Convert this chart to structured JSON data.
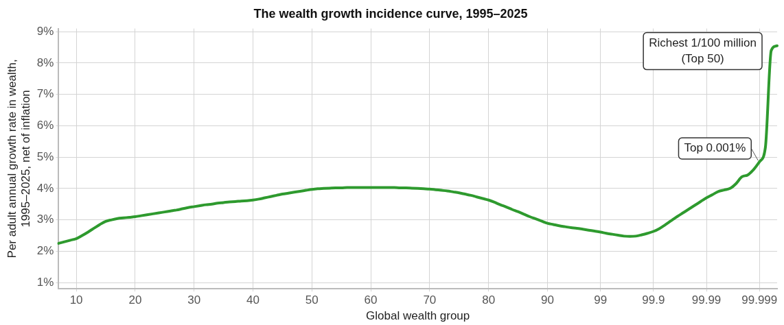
{
  "chart_data": {
    "type": "line",
    "title": "The wealth growth incidence curve, 1995–2025",
    "xlabel": "Global wealth group",
    "ylabel": "Per adult annual growth rate in wealth,\n1995–2025, net of inflation",
    "categories": [
      null,
      null,
      null,
      "10",
      null,
      null,
      null,
      null,
      null,
      null,
      null,
      null,
      null,
      "20",
      null,
      null,
      null,
      null,
      null,
      null,
      null,
      null,
      null,
      "30",
      null,
      null,
      null,
      null,
      null,
      null,
      null,
      null,
      null,
      "40",
      null,
      null,
      null,
      null,
      null,
      null,
      null,
      null,
      null,
      "50",
      null,
      null,
      null,
      null,
      null,
      null,
      null,
      null,
      null,
      "60",
      null,
      null,
      null,
      null,
      null,
      null,
      null,
      null,
      null,
      "70",
      null,
      null,
      null,
      null,
      null,
      null,
      null,
      null,
      null,
      "80",
      null,
      null,
      null,
      null,
      null,
      null,
      null,
      null,
      null,
      "90",
      null,
      null,
      null,
      null,
      null,
      null,
      null,
      null,
      "99",
      null,
      null,
      null,
      null,
      null,
      null,
      null,
      null,
      "99.9",
      null,
      null,
      null,
      null,
      null,
      null,
      null,
      null,
      "99.99",
      null,
      null,
      null,
      null,
      null,
      null,
      null,
      null,
      "99.999",
      null,
      null,
      null
    ],
    "series": [
      {
        "color": "#2e9a2e",
        "values": [
          2.25,
          2.3,
          2.35,
          2.4,
          2.5,
          2.61,
          2.73,
          2.85,
          2.95,
          3.0,
          3.04,
          3.06,
          3.08,
          3.1,
          3.13,
          3.16,
          3.19,
          3.22,
          3.25,
          3.28,
          3.31,
          3.35,
          3.39,
          3.42,
          3.45,
          3.48,
          3.5,
          3.53,
          3.55,
          3.57,
          3.58,
          3.6,
          3.61,
          3.63,
          3.66,
          3.7,
          3.74,
          3.78,
          3.82,
          3.85,
          3.88,
          3.91,
          3.94,
          3.97,
          3.99,
          4.0,
          4.01,
          4.02,
          4.02,
          4.03,
          4.03,
          4.03,
          4.03,
          4.03,
          4.03,
          4.03,
          4.03,
          4.03,
          4.02,
          4.02,
          4.01,
          4.0,
          3.99,
          3.98,
          3.96,
          3.94,
          3.92,
          3.89,
          3.86,
          3.82,
          3.78,
          3.73,
          3.68,
          3.63,
          3.56,
          3.48,
          3.41,
          3.33,
          3.26,
          3.18,
          3.1,
          3.03,
          2.96,
          2.89,
          2.85,
          2.81,
          2.78,
          2.75,
          2.73,
          2.7,
          2.67,
          2.64,
          2.61,
          2.57,
          2.54,
          2.51,
          2.48,
          2.47,
          2.48,
          2.52,
          2.57,
          2.63,
          2.72,
          2.84,
          2.97,
          3.1,
          3.22,
          3.34,
          3.46,
          3.58,
          3.7,
          3.8,
          3.9,
          3.95,
          4.0,
          4.15,
          4.37,
          4.43,
          4.6,
          4.85,
          5.3,
          8.4,
          8.55
        ]
      }
    ],
    "ylim": [
      0.8,
      9.1
    ],
    "yticks": [
      {
        "value": 1,
        "label": "1%"
      },
      {
        "value": 2,
        "label": "2%"
      },
      {
        "value": 3,
        "label": "3%"
      },
      {
        "value": 4,
        "label": "4%"
      },
      {
        "value": 5,
        "label": "5%"
      },
      {
        "value": 6,
        "label": "6%"
      },
      {
        "value": 7,
        "label": "7%"
      },
      {
        "value": 8,
        "label": "8%"
      },
      {
        "value": 9,
        "label": "9%"
      }
    ],
    "grid": true,
    "marker": "none",
    "line_style": "solid",
    "annotations": [
      "Richest 1/100 million\n(Top 50)",
      {
        "text": "Top 0.001%",
        "x": "99.999",
        "y": 4.85
      }
    ]
  }
}
